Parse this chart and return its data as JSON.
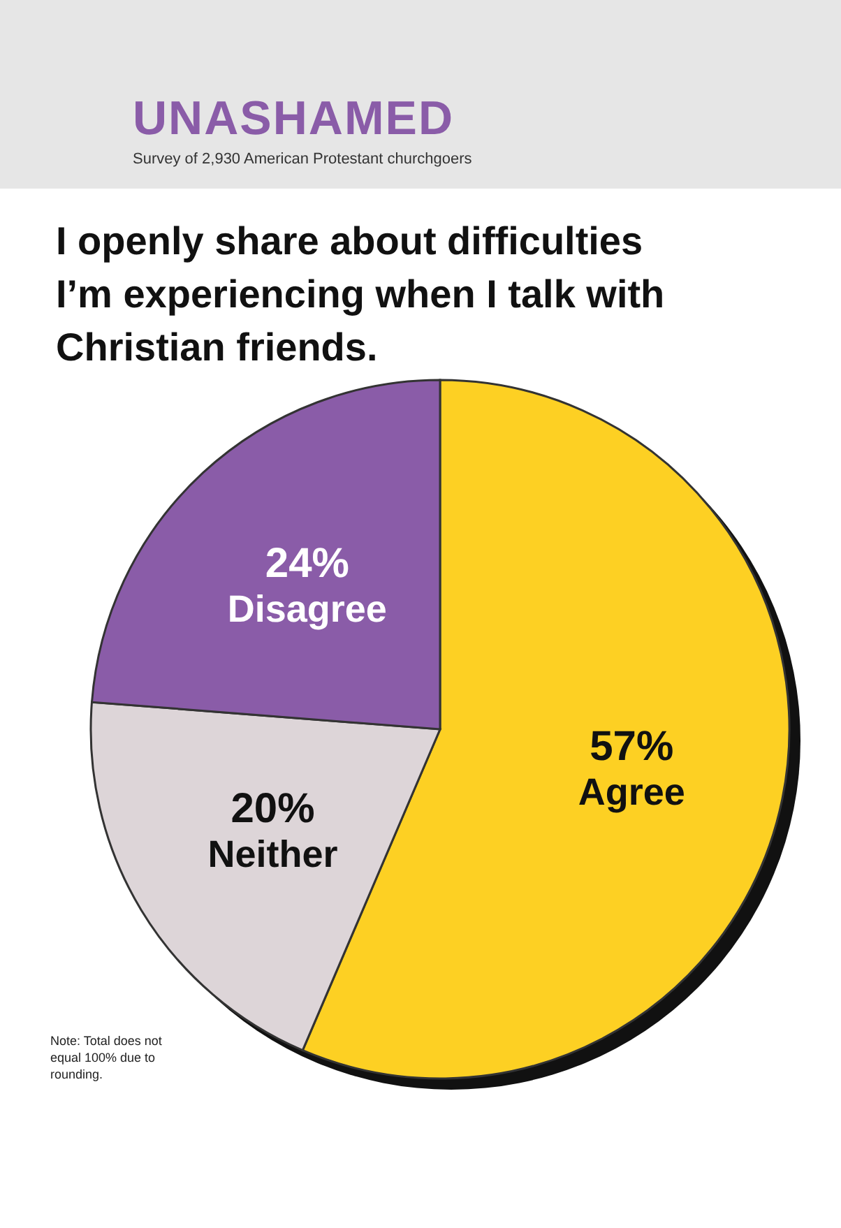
{
  "chart_data": {
    "type": "pie",
    "title": "UNASHAMED",
    "subtitle": "Survey of 2,930 American Protestant churchgoers",
    "xlabel": "I openly share about difficulties I’m experiencing when I talk with Christian friends.",
    "categories": [
      "Agree",
      "Neither",
      "Disagree"
    ],
    "values": [
      57,
      20,
      24
    ],
    "value_labels": [
      "57%",
      "20%",
      "24%"
    ],
    "colors": [
      "#fdd023",
      "#ddd5d8",
      "#8a5ca8"
    ],
    "annotations": [
      "Note: Total does not equal 100% due to rounding."
    ]
  }
}
